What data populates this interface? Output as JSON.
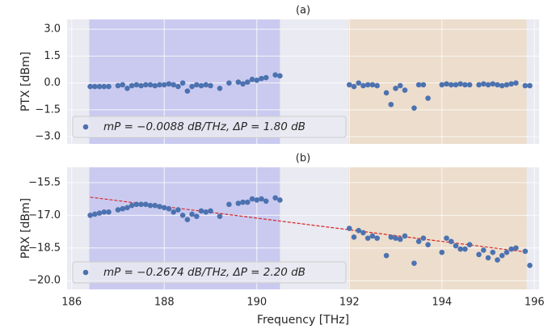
{
  "chart_data": [
    {
      "type": "scatter",
      "title": "(a)",
      "ylabel": "PTX [dBm]",
      "xlim": [
        185.9,
        196.1
      ],
      "ylim": [
        -3.4,
        3.55
      ],
      "xticks": [
        186,
        188,
        190,
        192,
        194,
        196
      ],
      "show_xtick_labels": false,
      "yticks": [
        {
          "value": 3,
          "label": "3.0"
        },
        1.5,
        {
          "value": 0,
          "label": "0.0"
        },
        {
          "value": -1.5,
          "label": "−1.5"
        },
        {
          "value": -3,
          "label": "−3.0"
        }
      ],
      "grid": true,
      "legend": "lower left",
      "spans": [
        {
          "x_range": [
            186.38,
            190.5
          ],
          "color": "#c6c6f0"
        },
        {
          "x_range": [
            191.98,
            195.83
          ],
          "color": "#ecdcc8"
        }
      ],
      "x": [
        186.4,
        186.5,
        186.6,
        186.7,
        186.8,
        187.0,
        187.1,
        187.2,
        187.3,
        187.4,
        187.5,
        187.6,
        187.7,
        187.8,
        187.9,
        188.0,
        188.1,
        188.2,
        188.3,
        188.4,
        188.5,
        188.6,
        188.7,
        188.8,
        188.9,
        189.0,
        189.2,
        189.4,
        189.6,
        189.7,
        189.8,
        189.9,
        190.0,
        190.1,
        190.2,
        190.4,
        190.5,
        192.0,
        192.1,
        192.2,
        192.3,
        192.4,
        192.5,
        192.6,
        192.8,
        192.9,
        193.0,
        193.1,
        193.2,
        193.4,
        193.5,
        193.6,
        193.7,
        194.0,
        194.1,
        194.2,
        194.3,
        194.4,
        194.5,
        194.6,
        194.8,
        194.9,
        195.0,
        195.1,
        195.2,
        195.3,
        195.4,
        195.5,
        195.6,
        195.8,
        195.9
      ],
      "series": [
        {
          "name": "mP = −0.0088 dB/THz,   ΔP = 1.80 dB",
          "color": "#4c72b0",
          "values": [
            -0.2,
            -0.2,
            -0.2,
            -0.2,
            -0.2,
            -0.15,
            -0.1,
            -0.3,
            -0.15,
            -0.1,
            -0.15,
            -0.1,
            -0.1,
            -0.15,
            -0.1,
            -0.1,
            -0.05,
            -0.1,
            -0.2,
            0.0,
            -0.45,
            -0.2,
            -0.1,
            -0.15,
            -0.1,
            -0.15,
            -0.3,
            0.0,
            0.05,
            -0.05,
            0.05,
            0.2,
            0.15,
            0.25,
            0.3,
            0.45,
            0.4,
            -0.1,
            -0.2,
            0.0,
            -0.15,
            -0.1,
            -0.1,
            -0.15,
            -0.55,
            -1.2,
            -0.3,
            -0.15,
            -0.4,
            -1.4,
            -0.1,
            -0.1,
            -0.85,
            -0.1,
            -0.05,
            -0.1,
            -0.1,
            -0.05,
            -0.1,
            -0.1,
            -0.1,
            -0.05,
            -0.1,
            -0.05,
            -0.1,
            -0.15,
            -0.1,
            -0.05,
            0.0,
            -0.15,
            -0.15
          ]
        }
      ]
    },
    {
      "type": "scatter",
      "title": "(b)",
      "ylabel": "PRX [dBm]",
      "xlabel": "Frequency [THz]",
      "xlim": [
        185.9,
        196.1
      ],
      "ylim": [
        -20.4,
        -14.8
      ],
      "xticks": [
        186,
        188,
        190,
        192,
        194,
        196
      ],
      "show_xtick_labels": true,
      "yticks": [
        {
          "value": -15.5,
          "label": "−15.5"
        },
        {
          "value": -17,
          "label": "−17.0"
        },
        {
          "value": -18.5,
          "label": "−18.5"
        },
        {
          "value": -20,
          "label": "−20.0"
        }
      ],
      "grid": true,
      "legend": "lower left",
      "spans": [
        {
          "x_range": [
            186.38,
            190.5
          ],
          "color": "#c6c6f0"
        },
        {
          "x_range": [
            191.98,
            195.83
          ],
          "color": "#ecdcc8"
        }
      ],
      "fit_line": {
        "x": [
          186.4,
          195.8
        ],
        "values": [
          -16.17,
          -18.68
        ],
        "color": "#d62728"
      },
      "x": [
        186.4,
        186.5,
        186.6,
        186.7,
        186.8,
        187.0,
        187.1,
        187.2,
        187.3,
        187.4,
        187.5,
        187.6,
        187.7,
        187.8,
        187.9,
        188.0,
        188.1,
        188.2,
        188.3,
        188.4,
        188.5,
        188.6,
        188.7,
        188.8,
        188.9,
        189.0,
        189.2,
        189.4,
        189.6,
        189.7,
        189.8,
        189.9,
        190.0,
        190.1,
        190.2,
        190.4,
        190.5,
        192.0,
        192.1,
        192.2,
        192.3,
        192.4,
        192.5,
        192.6,
        192.8,
        192.9,
        193.0,
        193.1,
        193.2,
        193.4,
        193.5,
        193.6,
        193.7,
        194.0,
        194.1,
        194.2,
        194.3,
        194.4,
        194.5,
        194.6,
        194.8,
        194.9,
        195.0,
        195.1,
        195.2,
        195.3,
        195.4,
        195.5,
        195.6,
        195.8,
        195.9
      ],
      "series": [
        {
          "name": "mP = −0.2674 dB/THz,   ΔP = 2.20 dB",
          "color": "#4c72b0",
          "values": [
            -17.0,
            -16.95,
            -16.9,
            -16.85,
            -16.85,
            -16.75,
            -16.7,
            -16.65,
            -16.55,
            -16.5,
            -16.5,
            -16.5,
            -16.55,
            -16.55,
            -16.6,
            -16.65,
            -16.7,
            -16.85,
            -16.75,
            -17.0,
            -17.2,
            -16.95,
            -17.05,
            -16.8,
            -16.85,
            -16.8,
            -17.05,
            -16.5,
            -16.45,
            -16.4,
            -16.4,
            -16.25,
            -16.3,
            -16.25,
            -16.35,
            -16.2,
            -16.3,
            -17.6,
            -18.0,
            -17.7,
            -17.8,
            -18.05,
            -17.95,
            -18.05,
            -18.85,
            -18.0,
            -18.05,
            -18.1,
            -17.95,
            -19.2,
            -18.2,
            -18.05,
            -18.35,
            -18.7,
            -18.05,
            -18.2,
            -18.4,
            -18.55,
            -18.55,
            -18.35,
            -18.8,
            -18.6,
            -18.95,
            -18.7,
            -19.05,
            -18.85,
            -18.7,
            -18.55,
            -18.5,
            -18.65,
            -19.3
          ]
        }
      ]
    }
  ]
}
